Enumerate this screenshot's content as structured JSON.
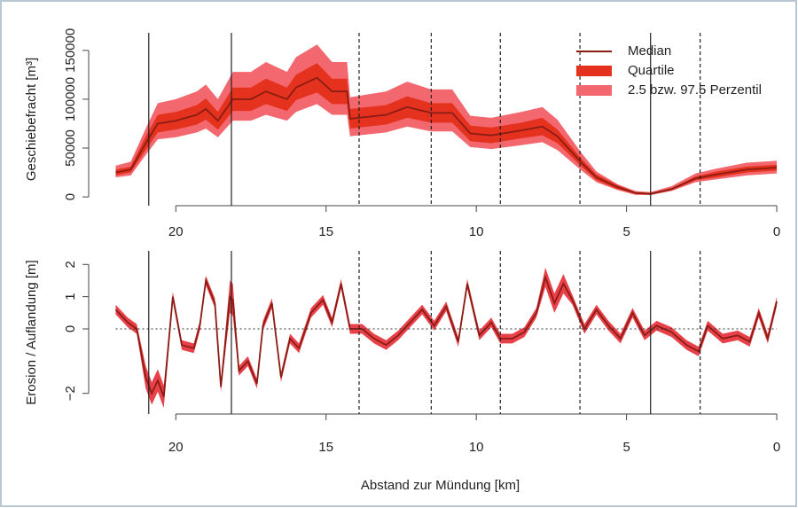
{
  "chart_data": [
    {
      "type": "band-line",
      "ylabel": "Geschiebefracht [m³]",
      "x": [
        22,
        21.5,
        21,
        20.6,
        20,
        19.3,
        19,
        18.6,
        18.1,
        17.5,
        17,
        16.3,
        16,
        15.3,
        14.8,
        14.3,
        14.2,
        13,
        12.3,
        11.5,
        10.8,
        10.2,
        9.5,
        8.5,
        7.8,
        7.3,
        6.5,
        6,
        5.3,
        4.7,
        4.2,
        3.5,
        2.7,
        2,
        1,
        0
      ],
      "series": [
        {
          "name": "2.5 bzw. 97.5 Perzentil",
          "color": "#f3676f",
          "lower": [
            20000,
            22000,
            43000,
            59000,
            61000,
            66000,
            70000,
            61000,
            78000,
            78000,
            84000,
            78000,
            87000,
            95000,
            84000,
            84000,
            62000,
            66000,
            72000,
            67000,
            67000,
            51000,
            49000,
            53000,
            56000,
            48000,
            27000,
            15000,
            7000,
            2000,
            2000,
            6000,
            15000,
            18000,
            22000,
            24000
          ],
          "upper": [
            32000,
            36000,
            70000,
            96000,
            100000,
            108000,
            115000,
            100000,
            128000,
            128000,
            138000,
            128000,
            143000,
            156000,
            138000,
            138000,
            102000,
            108000,
            118000,
            110000,
            110000,
            83000,
            81000,
            87000,
            92000,
            79000,
            45000,
            26000,
            13000,
            6000,
            5000,
            11000,
            24000,
            29000,
            35000,
            37000
          ]
        },
        {
          "name": "Quartile",
          "color": "#e5321e",
          "lower": [
            22000,
            25000,
            48000,
            66000,
            69000,
            74000,
            79000,
            69000,
            88000,
            88000,
            95000,
            88000,
            99000,
            107000,
            95000,
            95000,
            70000,
            74000,
            81000,
            76000,
            76000,
            57000,
            55000,
            60000,
            63000,
            55000,
            31000,
            17000,
            8000,
            3000,
            2000,
            7000,
            17000,
            20000,
            25000,
            27000
          ],
          "upper": [
            28000,
            31000,
            62000,
            84000,
            87000,
            94000,
            101000,
            87000,
            112000,
            112000,
            121000,
            112000,
            125000,
            137000,
            121000,
            121000,
            90000,
            94000,
            103000,
            96000,
            96000,
            73000,
            71000,
            76000,
            81000,
            69000,
            39000,
            23000,
            12000,
            5000,
            4000,
            9000,
            21000,
            26000,
            31000,
            33000
          ]
        },
        {
          "name": "Median",
          "color": "#8a1c14",
          "values": [
            25000,
            28000,
            55000,
            75000,
            78000,
            84000,
            90000,
            78000,
            100000,
            100000,
            108000,
            100000,
            112000,
            122000,
            108000,
            108000,
            80000,
            84000,
            92000,
            86000,
            86000,
            65000,
            63000,
            68000,
            72000,
            62000,
            35000,
            20000,
            10000,
            4000,
            3000,
            8000,
            19000,
            23000,
            28000,
            30000
          ]
        }
      ],
      "xlim": [
        22.9,
        -0.5
      ],
      "xticks": [
        20,
        15,
        10,
        5,
        0
      ],
      "ylim": [
        -9000,
        168000
      ],
      "yticks": [
        0,
        50000,
        100000,
        150000
      ],
      "legend": "top-right",
      "vlines": [
        {
          "x": 20.9,
          "style": "solid"
        },
        {
          "x": 18.15,
          "style": "solid"
        },
        {
          "x": 13.9,
          "style": "dashed"
        },
        {
          "x": 11.5,
          "style": "dashed"
        },
        {
          "x": 9.2,
          "style": "dashed"
        },
        {
          "x": 6.55,
          "style": "dashed"
        },
        {
          "x": 4.2,
          "style": "solid"
        },
        {
          "x": 2.55,
          "style": "dashed"
        }
      ]
    },
    {
      "type": "band-line",
      "ylabel": "Erosion / Auflandung [m]",
      "xlabel": "Abstand zur Mündung [km]",
      "x": [
        22,
        21.6,
        21.3,
        21,
        20.8,
        20.6,
        20.4,
        20.1,
        19.8,
        19.4,
        19.2,
        19,
        18.7,
        18.5,
        18.2,
        18.1,
        17.9,
        17.6,
        17.3,
        17.1,
        16.8,
        16.5,
        16.2,
        15.9,
        15.5,
        15.1,
        14.8,
        14.5,
        14.2,
        13.8,
        13.4,
        13,
        12.6,
        12.2,
        11.8,
        11.4,
        11,
        10.6,
        10.3,
        9.9,
        9.5,
        9.2,
        8.8,
        8.4,
        8,
        7.7,
        7.4,
        7.1,
        6.8,
        6.4,
        6,
        5.6,
        5.2,
        4.8,
        4.4,
        4,
        3.5,
        3,
        2.6,
        2.3,
        1.8,
        1.3,
        0.9,
        0.6,
        0.3,
        0
      ],
      "series": [
        {
          "color": "#e8414a",
          "lower": [
            0.45,
            0.05,
            -0.15,
            -1.85,
            -2.35,
            -1.95,
            -2.45,
            0.85,
            -0.65,
            -0.75,
            -0.05,
            1.35,
            0.65,
            -1.95,
            0.5,
            0.4,
            -1.45,
            -1.15,
            -1.85,
            -0.05,
            0.65,
            -1.65,
            -0.45,
            -0.75,
            0.35,
            0.75,
            0.05,
            1.25,
            -0.15,
            -0.15,
            -0.45,
            -0.65,
            -0.35,
            0.05,
            0.45,
            -0.05,
            0.55,
            -0.55,
            1.25,
            -0.35,
            0.05,
            -0.45,
            -0.45,
            -0.25,
            0.35,
            1.3,
            0.5,
            1.1,
            0.75,
            -0.15,
            0.45,
            -0.05,
            -0.45,
            0.35,
            -0.35,
            -0.05,
            -0.25,
            -0.65,
            -0.85,
            -0.05,
            -0.45,
            -0.35,
            -0.55,
            0.35,
            -0.45,
            0.7
          ],
          "upper": [
            0.75,
            0.35,
            0.15,
            -1.15,
            -1.65,
            -1.25,
            -1.75,
            1.15,
            -0.35,
            -0.45,
            0.25,
            1.65,
            0.95,
            -1.65,
            1.5,
            1.4,
            -1.15,
            -0.85,
            -1.55,
            0.25,
            0.95,
            -1.35,
            -0.15,
            -0.45,
            0.65,
            1.05,
            0.35,
            1.55,
            0.15,
            0.15,
            -0.15,
            -0.35,
            -0.05,
            0.35,
            0.75,
            0.25,
            0.85,
            -0.25,
            1.55,
            -0.05,
            0.35,
            -0.15,
            -0.15,
            0.05,
            0.65,
            1.9,
            1.1,
            1.7,
            1.05,
            0.15,
            0.75,
            0.25,
            -0.15,
            0.65,
            -0.05,
            0.25,
            0.05,
            -0.35,
            -0.55,
            0.25,
            -0.15,
            -0.05,
            -0.25,
            0.65,
            -0.15,
            1.0
          ]
        },
        {
          "color": "#8a1c14",
          "values": [
            0.6,
            0.2,
            0,
            -1.5,
            -2,
            -1.6,
            -2.1,
            1,
            -0.5,
            -0.6,
            0.1,
            1.5,
            0.8,
            -1.8,
            1,
            0.9,
            -1.3,
            -1,
            -1.7,
            0.1,
            0.8,
            -1.5,
            -0.3,
            -0.6,
            0.5,
            0.9,
            0.2,
            1.4,
            0,
            0,
            -0.3,
            -0.5,
            -0.2,
            0.2,
            0.6,
            0.1,
            0.7,
            -0.4,
            1.4,
            -0.2,
            0.2,
            -0.3,
            -0.3,
            -0.1,
            0.5,
            1.6,
            0.8,
            1.4,
            0.9,
            0,
            0.6,
            0.1,
            -0.3,
            0.5,
            -0.2,
            0.1,
            -0.1,
            -0.5,
            -0.7,
            0.1,
            -0.3,
            -0.2,
            -0.4,
            0.5,
            -0.3,
            0.85
          ]
        }
      ],
      "xlim": [
        22.9,
        -0.5
      ],
      "xticks": [
        20,
        15,
        10,
        5,
        0
      ],
      "ylim": [
        -2.64,
        2.42
      ],
      "yticks": [
        {
          "value": -2,
          "label": "−2"
        },
        0,
        1,
        2
      ],
      "hlines": [
        {
          "y": 0,
          "style": "dotted"
        }
      ],
      "vlines": [
        {
          "x": 20.9,
          "style": "solid"
        },
        {
          "x": 18.15,
          "style": "solid"
        },
        {
          "x": 13.9,
          "style": "dashed"
        },
        {
          "x": 11.5,
          "style": "dashed"
        },
        {
          "x": 9.2,
          "style": "dashed"
        },
        {
          "x": 6.55,
          "style": "dashed"
        },
        {
          "x": 4.2,
          "style": "solid"
        },
        {
          "x": 2.55,
          "style": "dashed"
        }
      ]
    }
  ]
}
